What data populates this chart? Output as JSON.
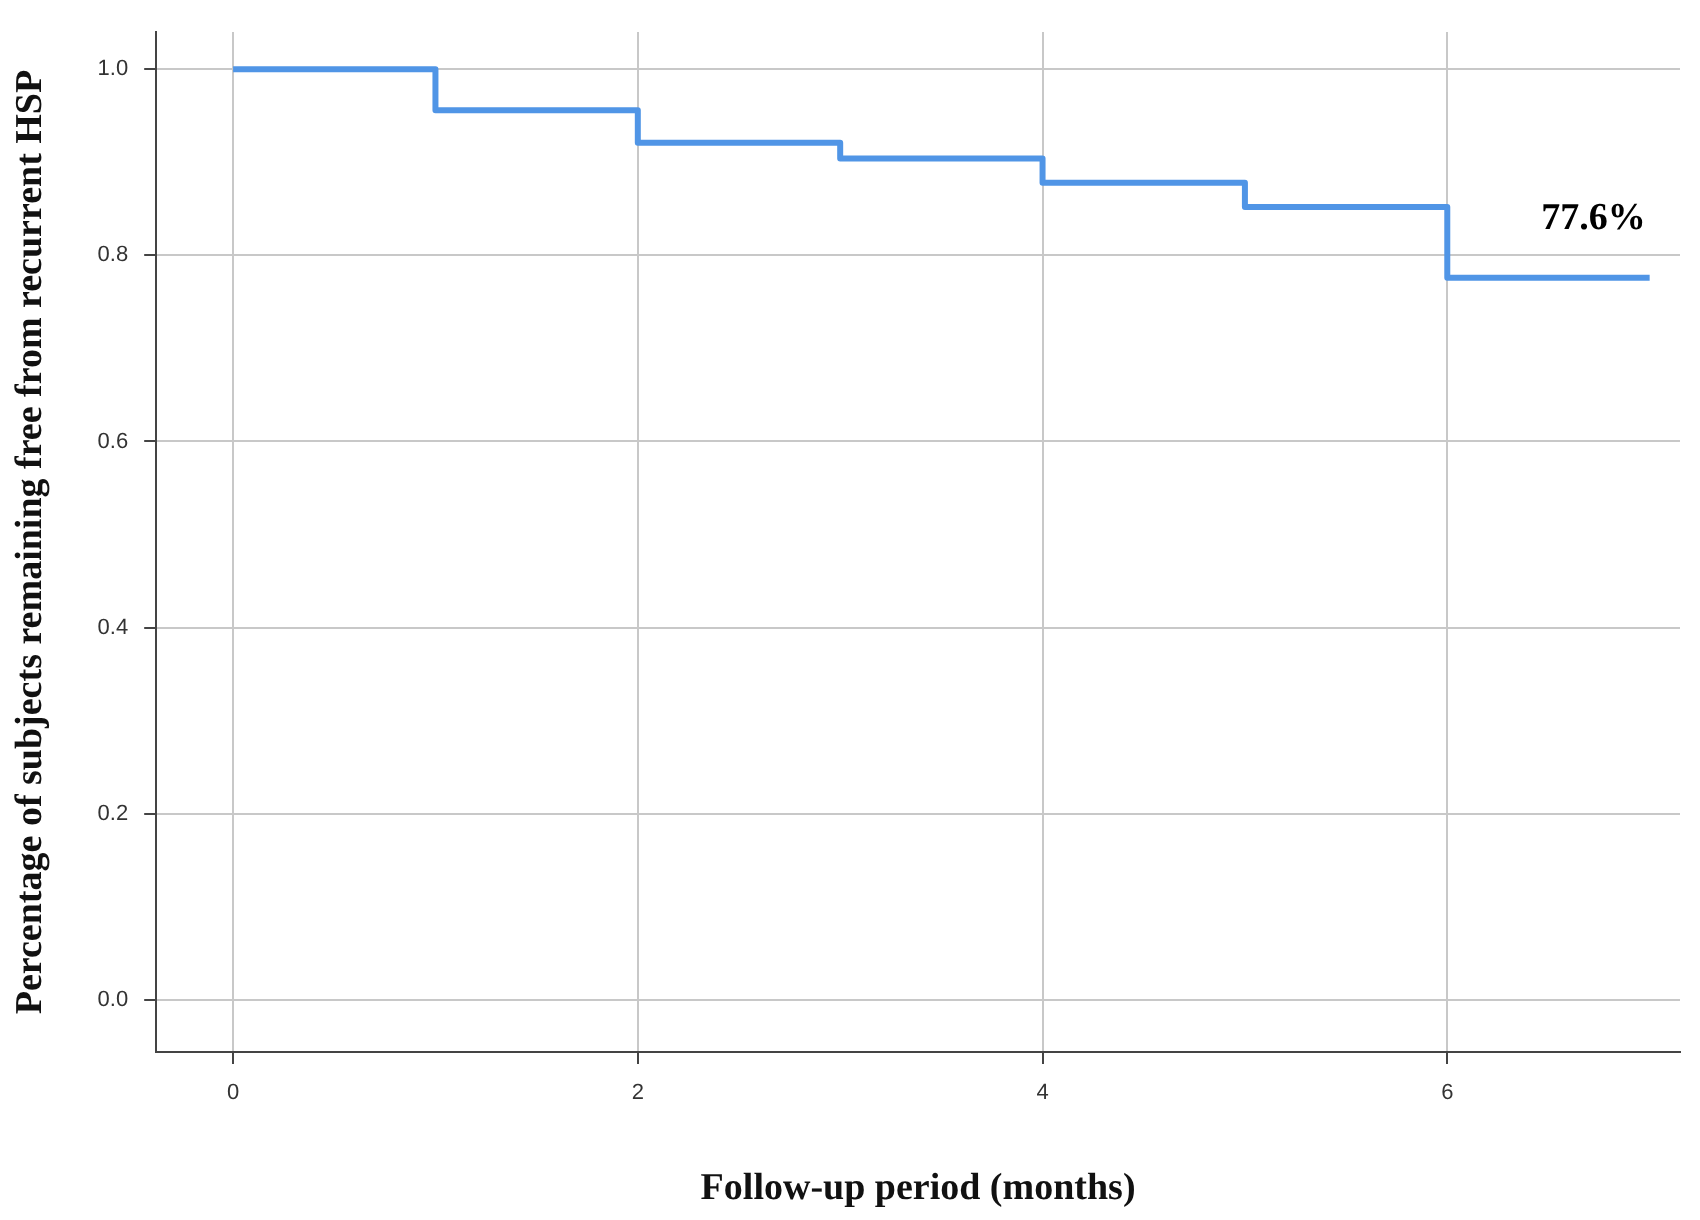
{
  "chart_data": {
    "type": "step",
    "xlabel": "Follow-up period (months)",
    "ylabel": "Percentage of subjects remaining free from recurrent HSP",
    "x": [
      0,
      1,
      2,
      3,
      4,
      5,
      6,
      7
    ],
    "series": [
      {
        "color": "#5095e6",
        "values": [
          1,
          0.956,
          0.921,
          0.904,
          0.878,
          0.852,
          0.776,
          0.776
        ]
      }
    ],
    "xlim": [
      -0.38,
      7.15
    ],
    "xticks": [
      0,
      2,
      4,
      6
    ],
    "ylim": [
      -0.056,
      1.04
    ],
    "yticks": [
      {
        "value": 0,
        "label": "0.0"
      },
      0.2,
      0.4,
      0.6,
      0.8,
      {
        "value": 1,
        "label": "1.0"
      }
    ],
    "grid": true,
    "legend": false,
    "annotations": [
      {
        "text": "77.6%",
        "x": 7,
        "y": 0.776
      }
    ]
  }
}
